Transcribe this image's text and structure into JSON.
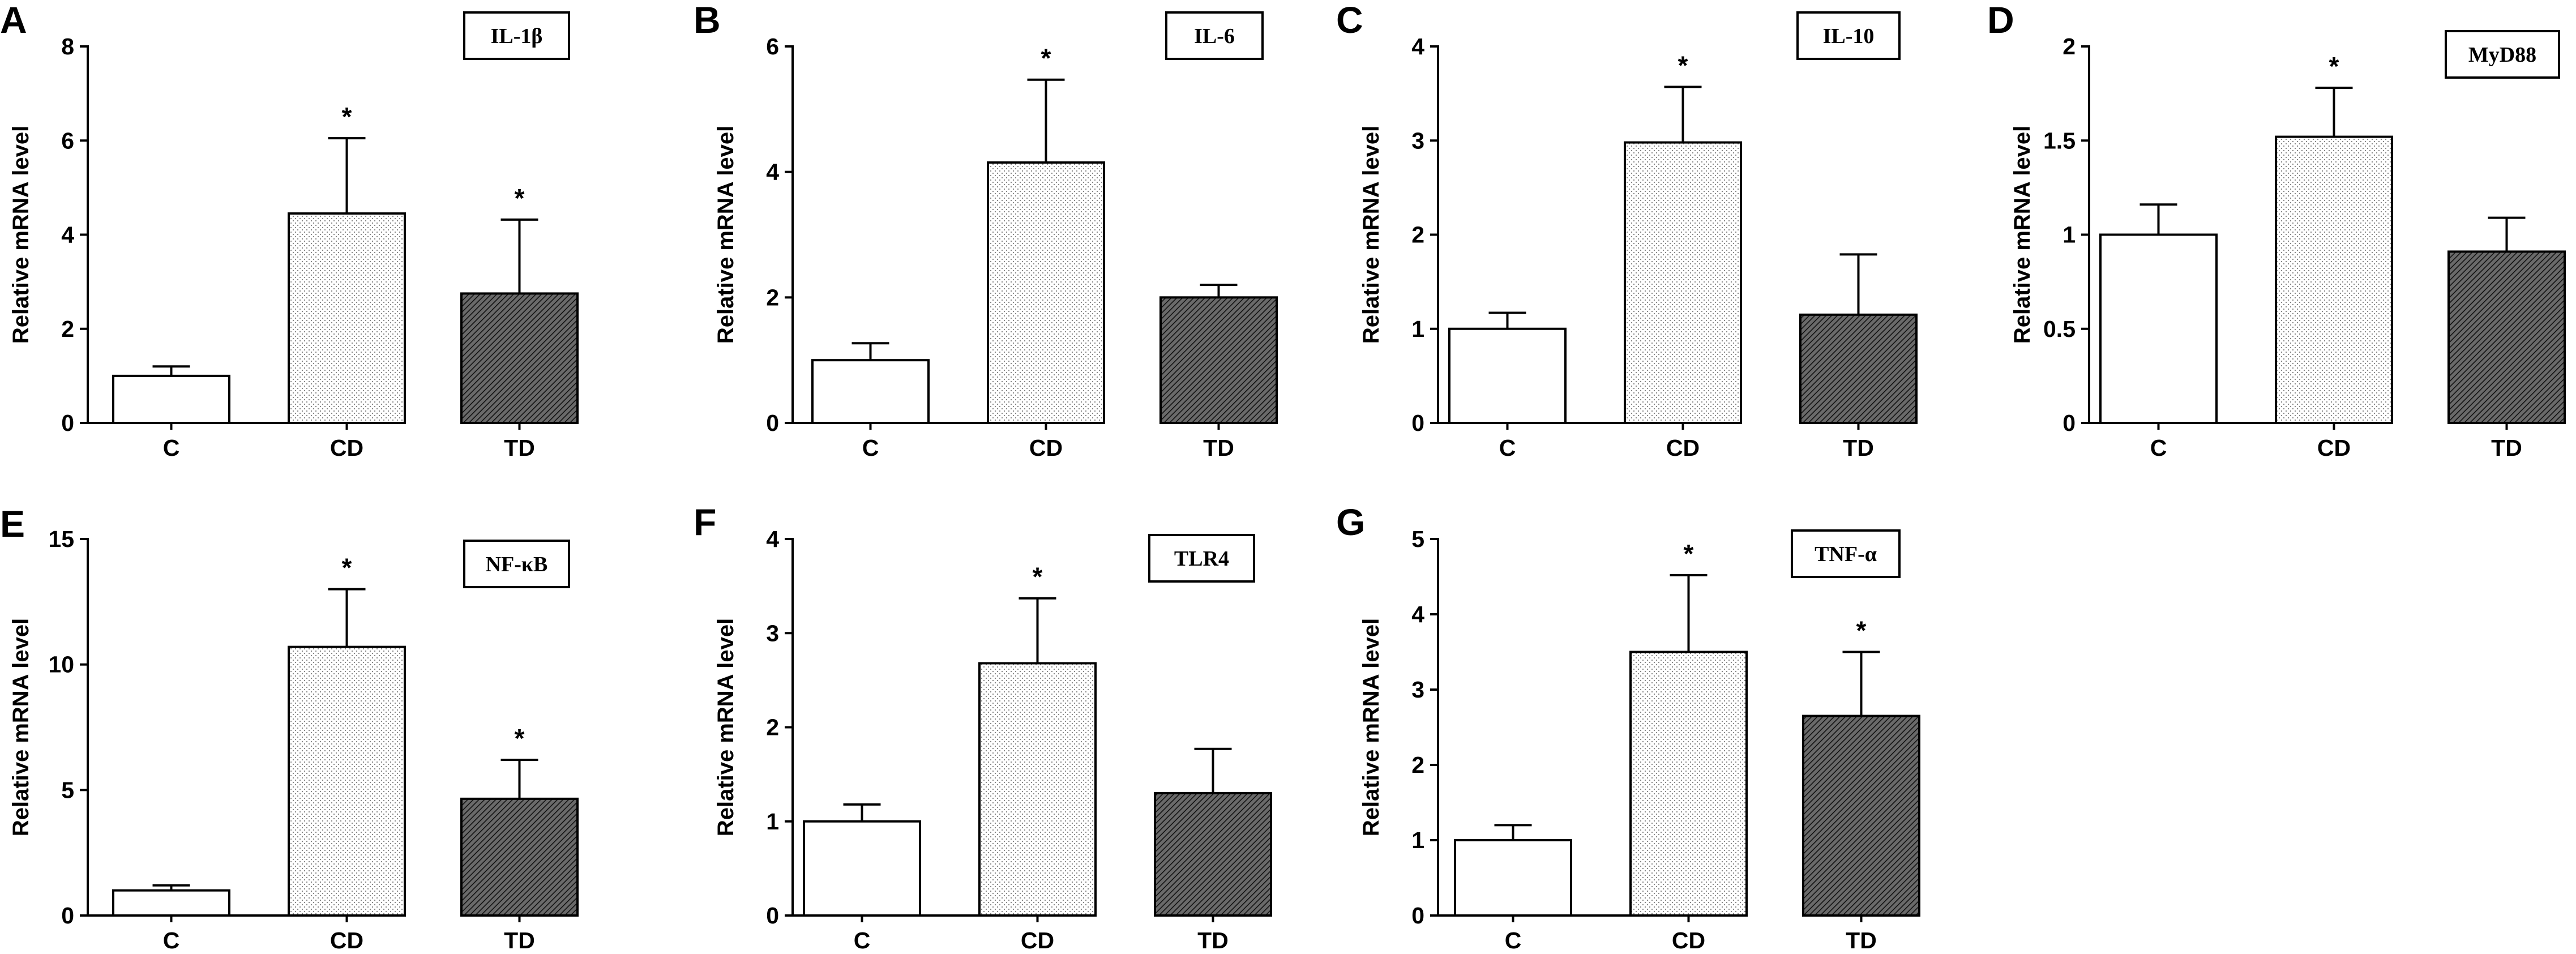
{
  "chart_data": [
    {
      "type": "bar",
      "panel": "A",
      "title": "IL-1β",
      "ylabel": "Relative mRNA level",
      "xlabel": "",
      "categories": [
        "C",
        "CD",
        "TD"
      ],
      "values": [
        1.0,
        4.45,
        2.75
      ],
      "errors": [
        0.2,
        1.6,
        1.57
      ],
      "significance": [
        "",
        "*",
        "*"
      ],
      "ylim": [
        0,
        8
      ],
      "yticks": [
        0,
        2,
        4,
        6,
        8
      ],
      "ytick_labels": [
        "0",
        "2",
        "4",
        "6",
        "8"
      ]
    },
    {
      "type": "bar",
      "panel": "B",
      "title": "IL-6",
      "ylabel": "Relative mRNA level",
      "xlabel": "",
      "categories": [
        "C",
        "CD",
        "TD"
      ],
      "values": [
        1.0,
        4.15,
        2.0
      ],
      "errors": [
        0.27,
        1.32,
        0.2
      ],
      "significance": [
        "",
        "*",
        ""
      ],
      "ylim": [
        0,
        6
      ],
      "yticks": [
        0,
        2,
        4,
        6
      ],
      "ytick_labels": [
        "0",
        "2",
        "4",
        "6"
      ]
    },
    {
      "type": "bar",
      "panel": "C",
      "title": "IL-10",
      "ylabel": "Relative mRNA level",
      "xlabel": "",
      "categories": [
        "C",
        "CD",
        "TD"
      ],
      "values": [
        1.0,
        2.98,
        1.15
      ],
      "errors": [
        0.17,
        0.59,
        0.64
      ],
      "significance": [
        "",
        "*",
        ""
      ],
      "ylim": [
        0,
        4
      ],
      "yticks": [
        0,
        1,
        2,
        3,
        4
      ],
      "ytick_labels": [
        "0",
        "1",
        "2",
        "3",
        "4"
      ]
    },
    {
      "type": "bar",
      "panel": "D",
      "title": "MyD88",
      "ylabel": "Relative mRNA level",
      "xlabel": "",
      "categories": [
        "C",
        "CD",
        "TD"
      ],
      "values": [
        1.0,
        1.52,
        0.91
      ],
      "errors": [
        0.16,
        0.26,
        0.18
      ],
      "significance": [
        "",
        "*",
        ""
      ],
      "ylim": [
        0,
        2
      ],
      "yticks": [
        0,
        0.5,
        1,
        1.5,
        2
      ],
      "ytick_labels": [
        "0",
        "0.5",
        "1",
        "1.5",
        "2"
      ]
    },
    {
      "type": "bar",
      "panel": "E",
      "title": "NF-κB",
      "ylabel": "Relative mRNA level",
      "xlabel": "",
      "categories": [
        "C",
        "CD",
        "TD"
      ],
      "values": [
        1.0,
        10.7,
        4.65
      ],
      "errors": [
        0.2,
        2.3,
        1.55
      ],
      "significance": [
        "",
        "*",
        "*"
      ],
      "ylim": [
        0,
        15
      ],
      "yticks": [
        0,
        5,
        10,
        15
      ],
      "ytick_labels": [
        "0",
        "5",
        "10",
        "15"
      ]
    },
    {
      "type": "bar",
      "panel": "F",
      "title": "TLR4",
      "ylabel": "Relative mRNA level",
      "xlabel": "",
      "categories": [
        "C",
        "CD",
        "TD"
      ],
      "values": [
        1.0,
        2.68,
        1.3
      ],
      "errors": [
        0.18,
        0.69,
        0.47
      ],
      "significance": [
        "",
        "*",
        ""
      ],
      "ylim": [
        0,
        4
      ],
      "yticks": [
        0,
        1,
        2,
        3,
        4
      ],
      "ytick_labels": [
        "0",
        "1",
        "2",
        "3",
        "4"
      ]
    },
    {
      "type": "bar",
      "panel": "G",
      "title": "TNF-α",
      "ylabel": "Relative mRNA level",
      "xlabel": "",
      "categories": [
        "C",
        "CD",
        "TD"
      ],
      "values": [
        1.0,
        3.5,
        2.65
      ],
      "errors": [
        0.2,
        1.02,
        0.85
      ],
      "significance": [
        "",
        "*",
        "*"
      ],
      "ylim": [
        0,
        5
      ],
      "yticks": [
        0,
        1,
        2,
        3,
        4,
        5
      ],
      "ytick_labels": [
        "0",
        "1",
        "2",
        "3",
        "4",
        "5"
      ]
    }
  ],
  "colors": {
    "axis": "#000000",
    "bar_edge": "#000000",
    "bar_C": "#ffffff",
    "bar_CD_dot": "#7a7a7a",
    "bar_TD_hatch": "#1f1f1f",
    "title_box_edge": "#000000"
  }
}
